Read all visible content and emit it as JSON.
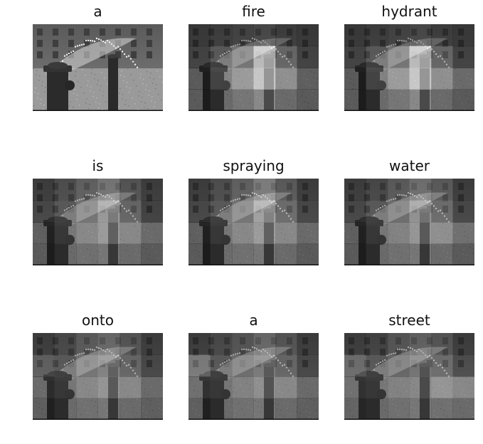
{
  "panels": [
    {
      "word": "a",
      "attention": [
        [
          0.0,
          0.0,
          0.0,
          0.0,
          0.0,
          0.0
        ],
        [
          0.0,
          0.0,
          0.0,
          0.0,
          0.0,
          0.0
        ],
        [
          0.0,
          0.0,
          0.0,
          0.0,
          0.0,
          0.0
        ],
        [
          0.0,
          0.0,
          0.0,
          0.0,
          0.0,
          0.0
        ]
      ]
    },
    {
      "word": "fire",
      "attention": [
        [
          0.05,
          0.1,
          0.15,
          0.2,
          0.1,
          0.05
        ],
        [
          0.1,
          0.3,
          0.5,
          0.95,
          0.4,
          0.1
        ],
        [
          0.05,
          0.4,
          0.6,
          0.9,
          0.5,
          0.1
        ],
        [
          0.05,
          0.2,
          0.3,
          0.45,
          0.2,
          0.05
        ]
      ]
    },
    {
      "word": "hydrant",
      "attention": [
        [
          0.05,
          0.1,
          0.15,
          0.2,
          0.1,
          0.05
        ],
        [
          0.1,
          0.3,
          0.5,
          0.95,
          0.4,
          0.1
        ],
        [
          0.05,
          0.4,
          0.6,
          0.9,
          0.5,
          0.2
        ],
        [
          0.05,
          0.2,
          0.3,
          0.45,
          0.2,
          0.05
        ]
      ]
    },
    {
      "word": "is",
      "attention": [
        [
          0.1,
          0.25,
          0.4,
          0.55,
          0.3,
          0.1
        ],
        [
          0.15,
          0.3,
          0.5,
          0.75,
          0.4,
          0.1
        ],
        [
          0.1,
          0.3,
          0.45,
          0.6,
          0.45,
          0.2
        ],
        [
          0.05,
          0.2,
          0.25,
          0.3,
          0.2,
          0.05
        ]
      ]
    },
    {
      "word": "spraying",
      "attention": [
        [
          0.1,
          0.25,
          0.4,
          0.6,
          0.35,
          0.1
        ],
        [
          0.15,
          0.3,
          0.5,
          0.8,
          0.45,
          0.15
        ],
        [
          0.1,
          0.3,
          0.45,
          0.6,
          0.45,
          0.2
        ],
        [
          0.05,
          0.2,
          0.25,
          0.3,
          0.2,
          0.05
        ]
      ]
    },
    {
      "word": "water",
      "attention": [
        [
          0.1,
          0.2,
          0.35,
          0.5,
          0.35,
          0.1
        ],
        [
          0.15,
          0.3,
          0.45,
          0.7,
          0.45,
          0.15
        ],
        [
          0.1,
          0.3,
          0.4,
          0.55,
          0.5,
          0.25
        ],
        [
          0.05,
          0.2,
          0.25,
          0.3,
          0.2,
          0.05
        ]
      ]
    },
    {
      "word": "onto",
      "attention": [
        [
          0.1,
          0.2,
          0.35,
          0.45,
          0.3,
          0.1
        ],
        [
          0.35,
          0.3,
          0.5,
          0.6,
          0.4,
          0.15
        ],
        [
          0.2,
          0.3,
          0.45,
          0.55,
          0.45,
          0.2
        ],
        [
          0.1,
          0.2,
          0.25,
          0.3,
          0.2,
          0.1
        ]
      ]
    },
    {
      "word": "a",
      "attention": [
        [
          0.1,
          0.2,
          0.3,
          0.45,
          0.3,
          0.1
        ],
        [
          0.55,
          0.3,
          0.45,
          0.55,
          0.4,
          0.15
        ],
        [
          0.25,
          0.3,
          0.4,
          0.5,
          0.45,
          0.2
        ],
        [
          0.1,
          0.2,
          0.25,
          0.3,
          0.2,
          0.1
        ]
      ]
    },
    {
      "word": "street",
      "attention": [
        [
          0.1,
          0.15,
          0.3,
          0.4,
          0.3,
          0.1
        ],
        [
          0.45,
          0.3,
          0.4,
          0.5,
          0.45,
          0.2
        ],
        [
          0.25,
          0.3,
          0.4,
          0.45,
          0.55,
          0.45
        ],
        [
          0.15,
          0.2,
          0.25,
          0.3,
          0.25,
          0.2
        ]
      ]
    }
  ]
}
